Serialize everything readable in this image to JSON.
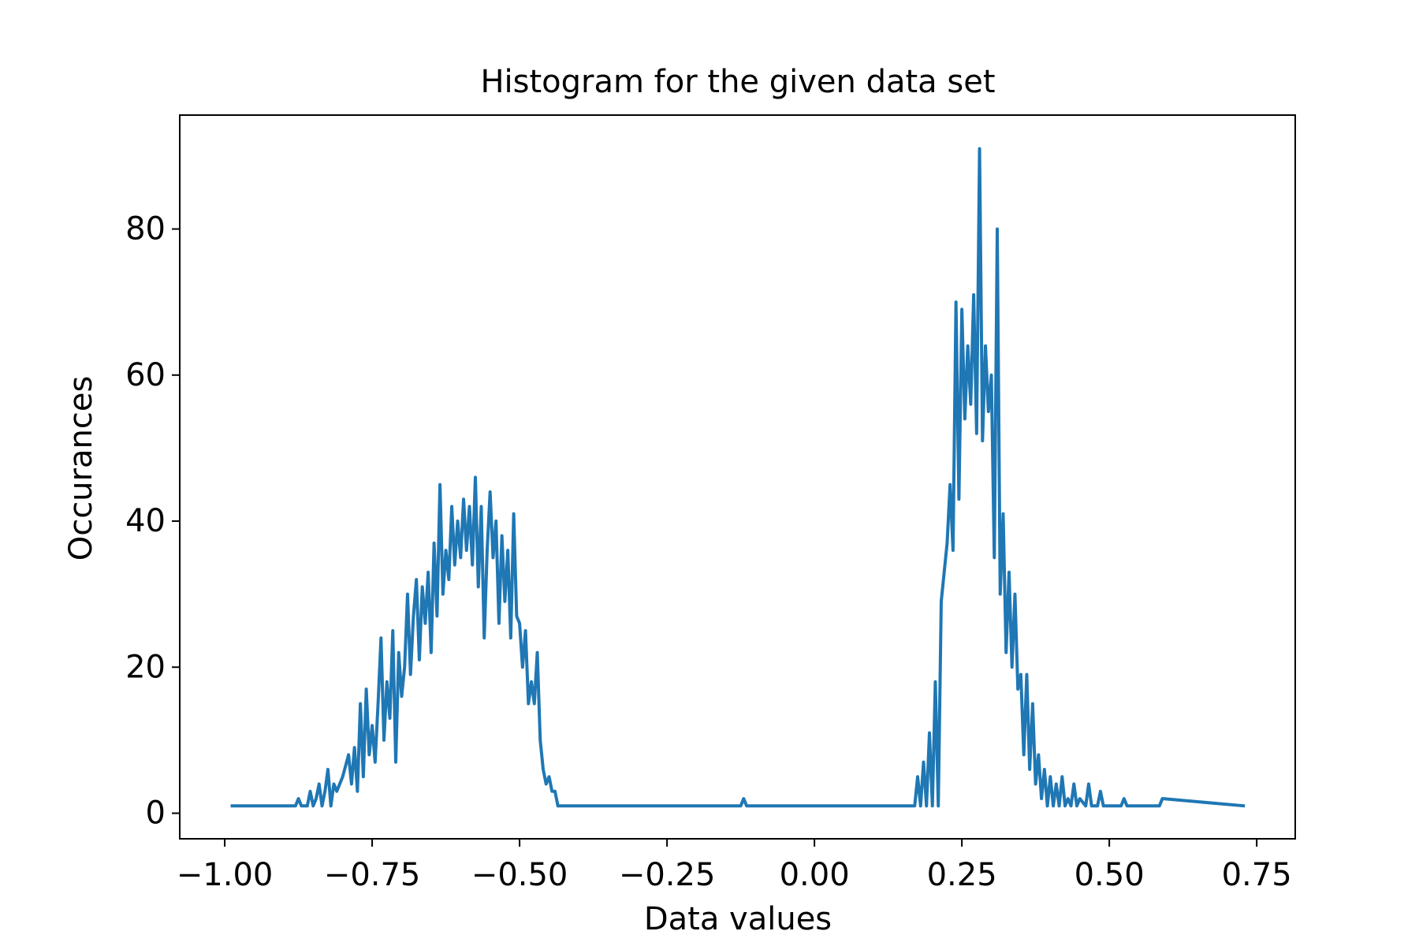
{
  "chart_data": {
    "type": "line",
    "title": "Histogram for the given data set",
    "xlabel": "Data values",
    "ylabel": "Occurances",
    "xlim": [
      -1.0763,
      0.8153
    ],
    "ylim": [
      -3.5,
      95.6
    ],
    "xticks": [
      {
        "value": -1.0,
        "label": "−1.00"
      },
      {
        "value": -0.75,
        "label": "−0.75"
      },
      {
        "value": -0.5,
        "label": "−0.50"
      },
      {
        "value": -0.25,
        "label": "−0.25"
      },
      {
        "value": 0,
        "label": "0.00"
      },
      0.25,
      {
        "value": 0.5,
        "label": "0.50"
      },
      0.75
    ],
    "yticks": [
      0,
      20,
      40,
      60,
      80
    ],
    "grid": false,
    "series": [
      {
        "color": "#1f77b4",
        "x": [
          -0.99,
          -0.88,
          -0.875,
          -0.87,
          -0.86,
          -0.855,
          -0.85,
          -0.845,
          -0.84,
          -0.835,
          -0.83,
          -0.825,
          -0.82,
          -0.815,
          -0.81,
          -0.8,
          -0.79,
          -0.785,
          -0.78,
          -0.775,
          -0.77,
          -0.765,
          -0.76,
          -0.755,
          -0.75,
          -0.745,
          -0.74,
          -0.735,
          -0.73,
          -0.725,
          -0.72,
          -0.715,
          -0.71,
          -0.705,
          -0.7,
          -0.695,
          -0.69,
          -0.685,
          -0.68,
          -0.675,
          -0.67,
          -0.665,
          -0.66,
          -0.655,
          -0.65,
          -0.645,
          -0.64,
          -0.635,
          -0.63,
          -0.625,
          -0.62,
          -0.615,
          -0.61,
          -0.605,
          -0.6,
          -0.595,
          -0.59,
          -0.585,
          -0.58,
          -0.575,
          -0.57,
          -0.565,
          -0.56,
          -0.555,
          -0.55,
          -0.545,
          -0.54,
          -0.535,
          -0.53,
          -0.525,
          -0.52,
          -0.515,
          -0.51,
          -0.505,
          -0.5,
          -0.495,
          -0.49,
          -0.485,
          -0.48,
          -0.475,
          -0.47,
          -0.465,
          -0.46,
          -0.455,
          -0.45,
          -0.445,
          -0.44,
          -0.435,
          -0.125,
          -0.12,
          -0.115,
          0.17,
          0.175,
          0.18,
          0.185,
          0.19,
          0.195,
          0.2,
          0.205,
          0.21,
          0.215,
          0.22,
          0.225,
          0.23,
          0.235,
          0.24,
          0.245,
          0.25,
          0.255,
          0.26,
          0.265,
          0.27,
          0.275,
          0.28,
          0.285,
          0.29,
          0.295,
          0.3,
          0.305,
          0.31,
          0.315,
          0.32,
          0.325,
          0.33,
          0.335,
          0.34,
          0.345,
          0.35,
          0.355,
          0.36,
          0.365,
          0.37,
          0.375,
          0.38,
          0.385,
          0.39,
          0.395,
          0.4,
          0.405,
          0.41,
          0.415,
          0.42,
          0.425,
          0.43,
          0.435,
          0.44,
          0.445,
          0.45,
          0.46,
          0.465,
          0.47,
          0.48,
          0.485,
          0.49,
          0.52,
          0.525,
          0.53,
          0.585,
          0.59,
          0.73
        ],
        "values": [
          1,
          1,
          2,
          1,
          1,
          3,
          1,
          2,
          4,
          1,
          3,
          6,
          1,
          4,
          3,
          5,
          8,
          4,
          9,
          3,
          15,
          5,
          17,
          8,
          12,
          7,
          15,
          24,
          10,
          18,
          13,
          25,
          7,
          22,
          16,
          20,
          30,
          19,
          27,
          32,
          21,
          31,
          26,
          33,
          22,
          37,
          27,
          45,
          30,
          36,
          32,
          42,
          34,
          40,
          35,
          43,
          36,
          42,
          34,
          46,
          31,
          42,
          24,
          36,
          44,
          35,
          40,
          26,
          38,
          29,
          36,
          24,
          41,
          27,
          26,
          20,
          25,
          15,
          18,
          15,
          22,
          10,
          6,
          4,
          5,
          3,
          3,
          1,
          1,
          2,
          1,
          1,
          5,
          1,
          7,
          1,
          11,
          1,
          18,
          1,
          29,
          33,
          37,
          45,
          36,
          70,
          43,
          69,
          54,
          64,
          56,
          71,
          52,
          91,
          51,
          64,
          55,
          60,
          35,
          80,
          30,
          41,
          22,
          33,
          20,
          30,
          17,
          19,
          8,
          19,
          6,
          15,
          4,
          8,
          2,
          6,
          1,
          5,
          1,
          4,
          1,
          5,
          1,
          2,
          1,
          4,
          1,
          2,
          1,
          4,
          1,
          1,
          3,
          1,
          1,
          2,
          1,
          1,
          2,
          1
        ]
      }
    ]
  }
}
